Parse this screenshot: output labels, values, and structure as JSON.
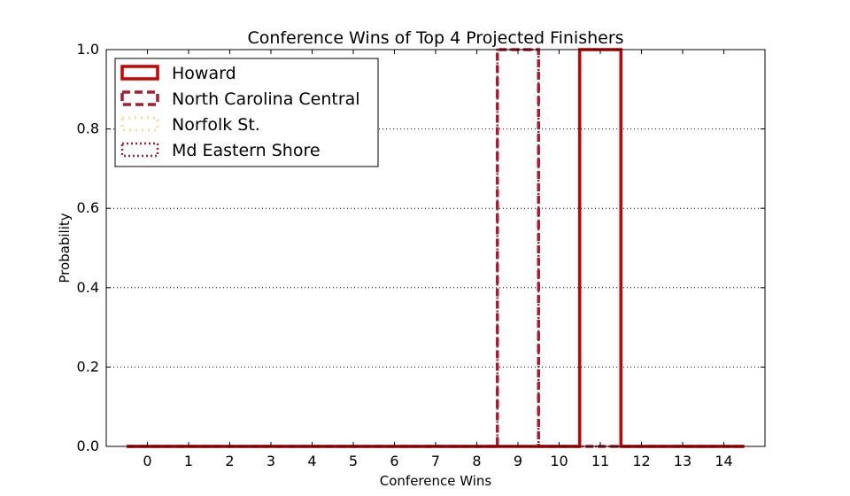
{
  "chart_data": {
    "type": "step-histogram",
    "title": "Conference Wins of Top 4 Projected Finishers",
    "xlabel": "Conference Wins",
    "ylabel": "Probability",
    "xlim": [
      -1,
      15
    ],
    "ylim": [
      0,
      1.0
    ],
    "x_ticks": [
      "0",
      "1",
      "2",
      "3",
      "4",
      "5",
      "6",
      "7",
      "8",
      "9",
      "10",
      "11",
      "12",
      "13",
      "14"
    ],
    "y_ticks": [
      "0.0",
      "0.2",
      "0.4",
      "0.6",
      "0.8",
      "1.0"
    ],
    "grid": "y-dotted",
    "legend_position": "top-left",
    "categories": [
      0,
      1,
      2,
      3,
      4,
      5,
      6,
      7,
      8,
      9,
      10,
      11,
      12,
      13,
      14
    ],
    "series": [
      {
        "name": "Howard",
        "color": "#cc0000",
        "style": "solid",
        "values": [
          0,
          0,
          0,
          0,
          0,
          0,
          0,
          0,
          0,
          0,
          0,
          1.0,
          0,
          0,
          0
        ]
      },
      {
        "name": "North Carolina Central",
        "color": "#a31f34",
        "style": "dashed",
        "values": [
          0,
          0,
          0,
          0,
          0,
          0,
          0,
          0,
          0,
          1.0,
          0,
          0,
          0,
          0,
          0
        ]
      },
      {
        "name": "Norfolk St.",
        "color": "#f6dfa4",
        "style": "dotted",
        "values": [
          0,
          0,
          0,
          0,
          0,
          0,
          0,
          0,
          0,
          1.0,
          0,
          0,
          0,
          0,
          0
        ]
      },
      {
        "name": "Md Eastern Shore",
        "color": "#a31f34",
        "style": "fine-dotted",
        "values": [
          0,
          0,
          0,
          0,
          0,
          0,
          0,
          0,
          0,
          1.0,
          0,
          0,
          0,
          0,
          0
        ]
      }
    ]
  }
}
